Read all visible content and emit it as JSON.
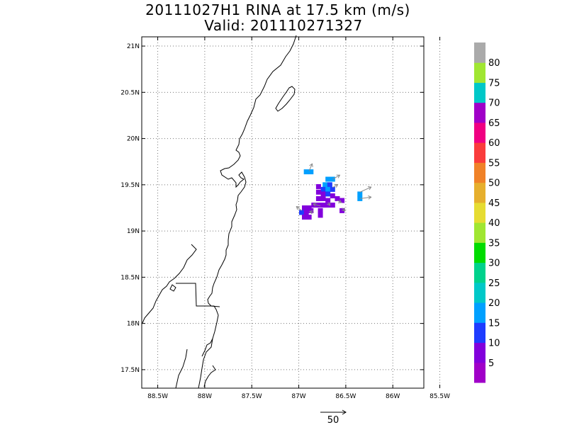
{
  "title_line1": "20111027H1 RINA at 17.5 km (m/s)",
  "title_line2": "Valid: 201110271327",
  "chart_data": {
    "type": "heatmap",
    "title": "20111027H1 RINA at 17.5 km (m/s)",
    "subtitle": "Valid: 201110271327",
    "x_ticks": [
      "88.5W",
      "88W",
      "87.5W",
      "87W",
      "86.5W",
      "86W",
      "85.5W"
    ],
    "x_tick_values": [
      -88.5,
      -88.0,
      -87.5,
      -87.0,
      -86.5,
      -86.0,
      -85.5
    ],
    "y_ticks": [
      "17.5N",
      "18N",
      "18.5N",
      "19N",
      "19.5N",
      "20N",
      "20.5N",
      "21N"
    ],
    "y_tick_values": [
      17.5,
      18.0,
      18.5,
      19.0,
      19.5,
      20.0,
      20.5,
      21.0
    ],
    "xlim": [
      -88.67,
      -85.67
    ],
    "ylim": [
      17.3,
      21.1
    ],
    "grid": true,
    "colorbar": {
      "labels": [
        "5",
        "10",
        "15",
        "20",
        "25",
        "30",
        "35",
        "40",
        "45",
        "50",
        "55",
        "60",
        "65",
        "70",
        "75",
        "80"
      ],
      "colors": [
        "#a000c8",
        "#8200dc",
        "#1e3cff",
        "#00a0ff",
        "#00c8c8",
        "#00d28c",
        "#00dc00",
        "#a0e632",
        "#e6dc32",
        "#e6af2d",
        "#f08228",
        "#fa3c3c",
        "#f00082",
        "#a000c8",
        "#00c8c8",
        "#a0e632",
        "#aaaaaa"
      ]
    },
    "wind_cells": [
      {
        "lon": -86.92,
        "lat": 19.64,
        "value": 18
      },
      {
        "lon": -86.87,
        "lat": 19.64,
        "value": 18
      },
      {
        "lon": -86.69,
        "lat": 19.56,
        "value": 18
      },
      {
        "lon": -86.64,
        "lat": 19.56,
        "value": 18
      },
      {
        "lon": -86.72,
        "lat": 19.5,
        "value": 15
      },
      {
        "lon": -86.67,
        "lat": 19.5,
        "value": 12
      },
      {
        "lon": -86.79,
        "lat": 19.48,
        "value": 7
      },
      {
        "lon": -86.74,
        "lat": 19.45,
        "value": 14
      },
      {
        "lon": -86.69,
        "lat": 19.45,
        "value": 15
      },
      {
        "lon": -86.64,
        "lat": 19.45,
        "value": 12
      },
      {
        "lon": -86.79,
        "lat": 19.42,
        "value": 7
      },
      {
        "lon": -86.74,
        "lat": 19.4,
        "value": 8
      },
      {
        "lon": -86.69,
        "lat": 19.4,
        "value": 10
      },
      {
        "lon": -86.64,
        "lat": 19.38,
        "value": 8
      },
      {
        "lon": -86.35,
        "lat": 19.4,
        "value": 18
      },
      {
        "lon": -86.35,
        "lat": 19.35,
        "value": 15
      },
      {
        "lon": -86.79,
        "lat": 19.35,
        "value": 6
      },
      {
        "lon": -86.74,
        "lat": 19.35,
        "value": 5
      },
      {
        "lon": -86.69,
        "lat": 19.33,
        "value": 6
      },
      {
        "lon": -86.59,
        "lat": 19.35,
        "value": 6
      },
      {
        "lon": -86.54,
        "lat": 19.33,
        "value": 5
      },
      {
        "lon": -86.84,
        "lat": 19.28,
        "value": 7
      },
      {
        "lon": -86.79,
        "lat": 19.28,
        "value": 5
      },
      {
        "lon": -86.74,
        "lat": 19.28,
        "value": 6
      },
      {
        "lon": -86.69,
        "lat": 19.28,
        "value": 5
      },
      {
        "lon": -86.64,
        "lat": 19.28,
        "value": 6
      },
      {
        "lon": -86.94,
        "lat": 19.25,
        "value": 6
      },
      {
        "lon": -86.89,
        "lat": 19.25,
        "value": 5
      },
      {
        "lon": -86.97,
        "lat": 19.2,
        "value": 14
      },
      {
        "lon": -86.92,
        "lat": 19.2,
        "value": 6
      },
      {
        "lon": -86.87,
        "lat": 19.22,
        "value": 7
      },
      {
        "lon": -86.77,
        "lat": 19.22,
        "value": 6
      },
      {
        "lon": -86.94,
        "lat": 19.15,
        "value": 5
      },
      {
        "lon": -86.89,
        "lat": 19.15,
        "value": 6
      },
      {
        "lon": -86.77,
        "lat": 19.17,
        "value": 5
      },
      {
        "lon": -86.54,
        "lat": 19.22,
        "value": 6
      }
    ],
    "wind_vectors": [
      {
        "lon": -86.89,
        "lat": 19.65,
        "u": 6,
        "v": 14
      },
      {
        "lon": -86.64,
        "lat": 19.56,
        "u": 14,
        "v": 8
      },
      {
        "lon": -86.35,
        "lat": 19.42,
        "u": 22,
        "v": 10
      },
      {
        "lon": -86.35,
        "lat": 19.35,
        "u": 22,
        "v": 3
      },
      {
        "lon": -86.64,
        "lat": 19.47,
        "u": 10,
        "v": 6
      },
      {
        "lon": -86.77,
        "lat": 19.27,
        "u": -14,
        "v": 4
      },
      {
        "lon": -86.97,
        "lat": 19.22,
        "u": -10,
        "v": 8
      },
      {
        "lon": -86.59,
        "lat": 19.33,
        "u": 8,
        "v": -4
      },
      {
        "lon": -86.54,
        "lat": 19.25,
        "u": 6,
        "v": -6
      },
      {
        "lon": -86.84,
        "lat": 19.2,
        "u": -8,
        "v": 2
      },
      {
        "lon": -86.69,
        "lat": 19.31,
        "u": 4,
        "v": -6
      }
    ],
    "reference_vector": {
      "label": "50",
      "value": 50
    }
  }
}
